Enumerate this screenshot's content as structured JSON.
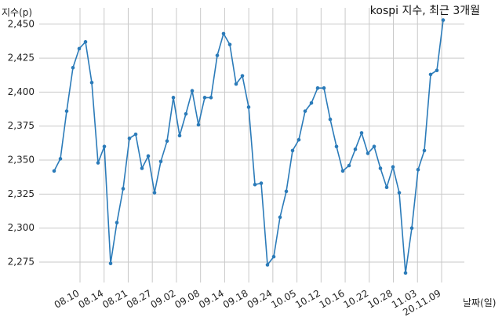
{
  "chart_data": {
    "type": "line",
    "title": "kospi 지수, 최근 3개월",
    "ylabel": "지수(p)",
    "xlabel": "날짜(일)",
    "ylim": [
      2260,
      2462
    ],
    "yticks": [
      2275,
      2300,
      2325,
      2350,
      2375,
      2400,
      2425,
      2450
    ],
    "ytick_labels": [
      "2,275",
      "2,300",
      "2,325",
      "2,350",
      "2,375",
      "2,400",
      "2,425",
      "2,450"
    ],
    "xticks": [
      "08.10",
      "08.14",
      "08.21",
      "08.27",
      "09.02",
      "09.08",
      "09.14",
      "09.18",
      "09.24",
      "10.05",
      "10.12",
      "10.16",
      "10.22",
      "10.28",
      "11.03",
      "20.11.09"
    ],
    "grid": true,
    "line_color": "#2b7bb9",
    "series": [
      {
        "values": [
          2342,
          2351,
          2386,
          2418,
          2432,
          2437,
          2407,
          2348,
          2360,
          2274,
          2304,
          2329,
          2366,
          2369,
          2344,
          2353,
          2326,
          2349,
          2364,
          2396,
          2368,
          2384,
          2401,
          2376,
          2396,
          2396,
          2427,
          2443,
          2435,
          2406,
          2412,
          2389,
          2332,
          2333,
          2273,
          2279,
          2308,
          2327,
          2357,
          2365,
          2386,
          2392,
          2403,
          2403,
          2380,
          2360,
          2342,
          2346,
          2358,
          2370,
          2355,
          2360,
          2344,
          2330,
          2345,
          2326,
          2267,
          2300,
          2343,
          2357,
          2413,
          2416,
          2453
        ]
      }
    ]
  }
}
